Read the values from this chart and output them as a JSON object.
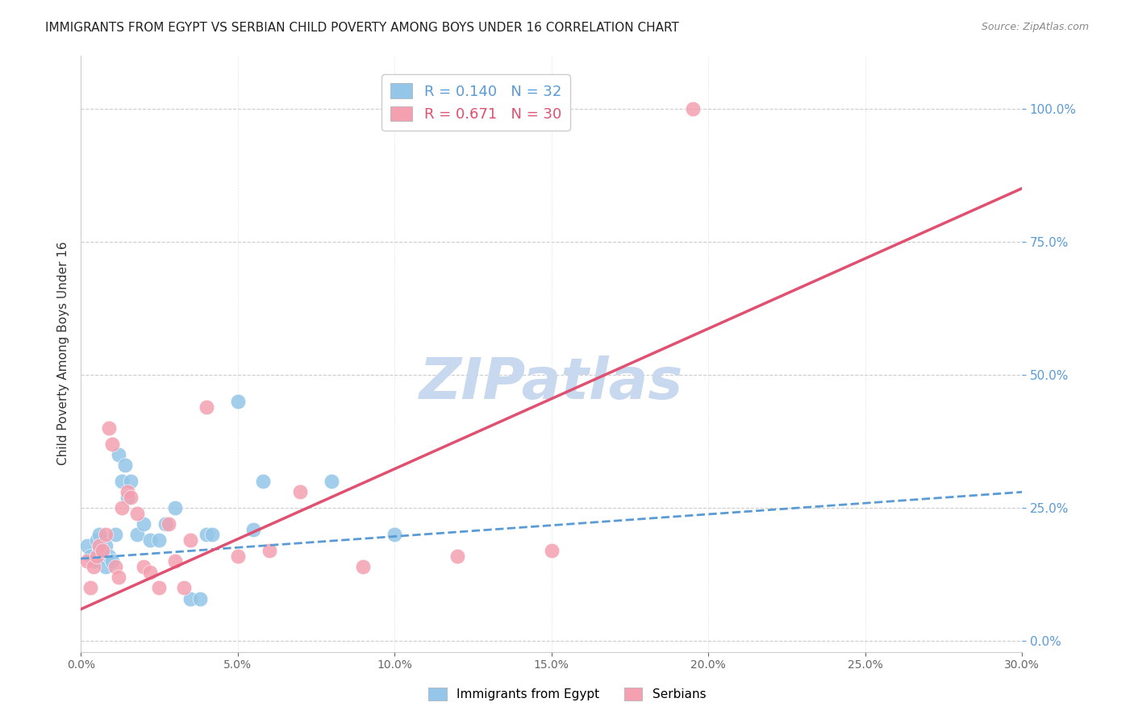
{
  "title": "IMMIGRANTS FROM EGYPT VS SERBIAN CHILD POVERTY AMONG BOYS UNDER 16 CORRELATION CHART",
  "source": "Source: ZipAtlas.com",
  "xlabel": "",
  "ylabel": "Child Poverty Among Boys Under 16",
  "legend_label1": "Immigrants from Egypt",
  "legend_label2": "Serbians",
  "R1": 0.14,
  "N1": 32,
  "R2": 0.671,
  "N2": 30,
  "color1": "#93C6E8",
  "color2": "#F4A0B0",
  "trend1_color": "#5B9BD5",
  "trend2_color": "#E05070",
  "xlim": [
    0.0,
    0.3
  ],
  "ylim": [
    -0.02,
    1.1
  ],
  "xticks": [
    0.0,
    0.05,
    0.1,
    0.15,
    0.2,
    0.25,
    0.3
  ],
  "yticks_right": [
    0.0,
    0.25,
    0.5,
    0.75,
    1.0
  ],
  "scatter1_x": [
    0.002,
    0.003,
    0.004,
    0.005,
    0.006,
    0.006,
    0.007,
    0.008,
    0.008,
    0.009,
    0.01,
    0.011,
    0.012,
    0.013,
    0.014,
    0.015,
    0.016,
    0.018,
    0.02,
    0.022,
    0.025,
    0.027,
    0.03,
    0.035,
    0.038,
    0.04,
    0.042,
    0.05,
    0.055,
    0.058,
    0.08,
    0.1
  ],
  "scatter1_y": [
    0.18,
    0.16,
    0.15,
    0.19,
    0.17,
    0.2,
    0.16,
    0.18,
    0.14,
    0.16,
    0.15,
    0.2,
    0.35,
    0.3,
    0.33,
    0.27,
    0.3,
    0.2,
    0.22,
    0.19,
    0.19,
    0.22,
    0.25,
    0.08,
    0.08,
    0.2,
    0.2,
    0.45,
    0.21,
    0.3,
    0.3,
    0.2
  ],
  "scatter2_x": [
    0.002,
    0.003,
    0.004,
    0.005,
    0.006,
    0.007,
    0.008,
    0.009,
    0.01,
    0.011,
    0.012,
    0.013,
    0.015,
    0.016,
    0.018,
    0.02,
    0.022,
    0.025,
    0.028,
    0.03,
    0.033,
    0.035,
    0.04,
    0.05,
    0.06,
    0.07,
    0.09,
    0.12,
    0.15,
    0.195
  ],
  "scatter2_y": [
    0.15,
    0.1,
    0.14,
    0.16,
    0.18,
    0.17,
    0.2,
    0.4,
    0.37,
    0.14,
    0.12,
    0.25,
    0.28,
    0.27,
    0.24,
    0.14,
    0.13,
    0.1,
    0.22,
    0.15,
    0.1,
    0.19,
    0.44,
    0.16,
    0.17,
    0.28,
    0.14,
    0.16,
    0.17,
    1.0
  ],
  "trend1_x": [
    0.0,
    0.3
  ],
  "trend1_y": [
    0.155,
    0.28
  ],
  "trend2_x": [
    0.0,
    0.3
  ],
  "trend2_y": [
    0.06,
    0.85
  ],
  "watermark": "ZIPatlas",
  "watermark_color": "#C8D8EE",
  "background_color": "#FFFFFF",
  "grid_color": "#CCCCCC"
}
